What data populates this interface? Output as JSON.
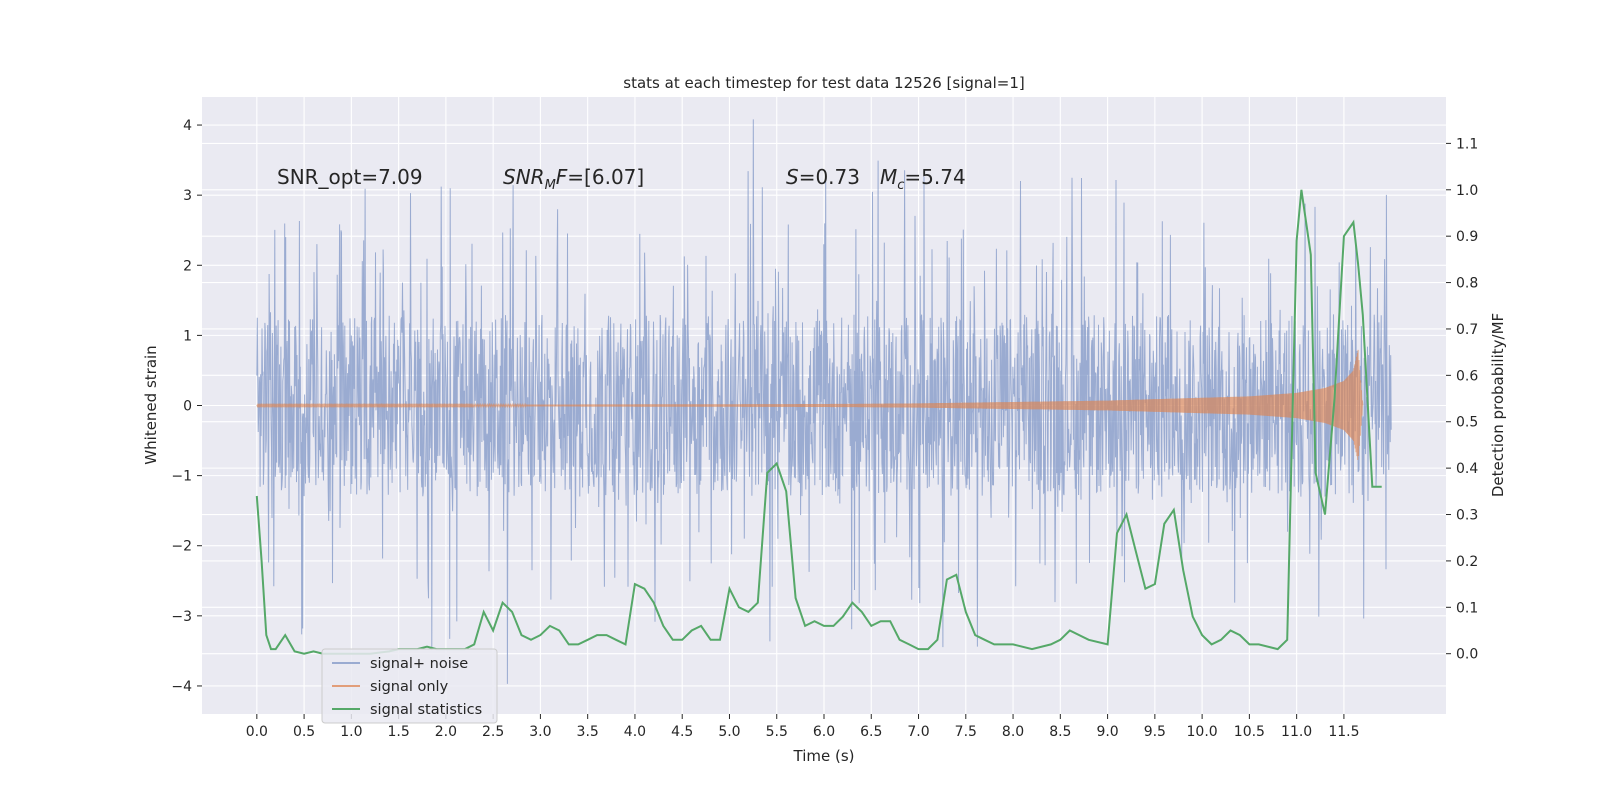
{
  "chart_data": {
    "type": "line",
    "title": "stats at each timestep for test data 12526 [signal=1]",
    "xlabel": "Time (s)",
    "ylabel": "Whitened strain",
    "y2label": "Detection probability/MF",
    "xlim": [
      -0.58,
      12.58
    ],
    "ylim": [
      -4.4,
      4.4
    ],
    "y2lim": [
      -0.13,
      1.2
    ],
    "x_ticks": [
      0.0,
      0.5,
      1.0,
      1.5,
      2.0,
      2.5,
      3.0,
      3.5,
      4.0,
      4.5,
      5.0,
      5.5,
      6.0,
      6.5,
      7.0,
      7.5,
      8.0,
      8.5,
      9.0,
      9.5,
      10.0,
      10.5,
      11.0,
      11.5
    ],
    "x_tick_labels": [
      "0.0",
      "0.5",
      "1.0",
      "1.5",
      "2.0",
      "2.5",
      "3.0",
      "3.5",
      "4.0",
      "4.5",
      "5.0",
      "5.5",
      "6.0",
      "6.5",
      "7.0",
      "7.5",
      "8.0",
      "8.5",
      "9.0",
      "9.5",
      "10.0",
      "10.5",
      "11.0",
      "11.5"
    ],
    "y_ticks": [
      -4,
      -3,
      -2,
      -1,
      0,
      1,
      2,
      3,
      4
    ],
    "y_tick_labels": [
      "−4",
      "−3",
      "−2",
      "−1",
      "0",
      "1",
      "2",
      "3",
      "4"
    ],
    "y2_ticks": [
      0.0,
      0.1,
      0.2,
      0.3,
      0.4,
      0.5,
      0.6,
      0.7,
      0.8,
      0.9,
      1.0,
      1.1
    ],
    "y2_tick_labels": [
      "0.0",
      "0.1",
      "0.2",
      "0.3",
      "0.4",
      "0.5",
      "0.6",
      "0.7",
      "0.8",
      "0.9",
      "1.0",
      "1.1"
    ],
    "grid": true,
    "legend_position": "bottom-left",
    "annotations": {
      "snr_opt": "SNR_opt=7.09",
      "snr_mf_main": "SNR",
      "snr_mf_sub": "M",
      "snr_mf_rest": "F",
      "snr_mf_value": "=[6.07]",
      "s_symbol": "S",
      "s_value": "=0.73",
      "mc_symbol": "M",
      "mc_sub": "c",
      "mc_value": "=5.74"
    },
    "series": [
      {
        "name": "signal+ noise",
        "color": "#7f96c6",
        "x_range": [
          0.0,
          12.0
        ],
        "core_amplitude": 1.3,
        "peak_max": 4.08,
        "peak_min": -3.97
      },
      {
        "name": "signal only",
        "color": "#dd8452",
        "x_range": [
          0.0,
          11.7
        ],
        "chirp_envelope": [
          [
            0.0,
            0.01
          ],
          [
            2.0,
            0.01
          ],
          [
            4.0,
            0.015
          ],
          [
            6.0,
            0.02
          ],
          [
            7.0,
            0.03
          ],
          [
            8.0,
            0.05
          ],
          [
            9.0,
            0.07
          ],
          [
            10.0,
            0.11
          ],
          [
            10.5,
            0.13
          ],
          [
            11.0,
            0.18
          ],
          [
            11.3,
            0.25
          ],
          [
            11.5,
            0.35
          ],
          [
            11.6,
            0.5
          ],
          [
            11.65,
            0.8
          ],
          [
            11.7,
            0.0
          ]
        ]
      },
      {
        "name": "signal statistics",
        "color": "#55a868",
        "axis": "right",
        "x": [
          0.0,
          0.05,
          0.1,
          0.15,
          0.2,
          0.3,
          0.4,
          0.5,
          0.6,
          0.7,
          0.8,
          1.0,
          1.2,
          1.4,
          1.5,
          1.6,
          1.7,
          1.8,
          1.9,
          2.0,
          2.1,
          2.2,
          2.3,
          2.4,
          2.5,
          2.6,
          2.7,
          2.8,
          2.9,
          3.0,
          3.1,
          3.2,
          3.3,
          3.4,
          3.5,
          3.6,
          3.7,
          3.8,
          3.9,
          4.0,
          4.1,
          4.2,
          4.3,
          4.4,
          4.5,
          4.6,
          4.7,
          4.8,
          4.9,
          5.0,
          5.1,
          5.2,
          5.3,
          5.4,
          5.5,
          5.6,
          5.7,
          5.8,
          5.9,
          6.0,
          6.1,
          6.2,
          6.3,
          6.4,
          6.5,
          6.6,
          6.7,
          6.8,
          6.9,
          7.0,
          7.1,
          7.2,
          7.3,
          7.4,
          7.5,
          7.6,
          7.7,
          7.8,
          7.9,
          8.0,
          8.2,
          8.4,
          8.5,
          8.6,
          8.8,
          9.0,
          9.1,
          9.2,
          9.3,
          9.4,
          9.5,
          9.6,
          9.7,
          9.8,
          9.9,
          10.0,
          10.1,
          10.2,
          10.3,
          10.4,
          10.5,
          10.6,
          10.8,
          10.9,
          11.0,
          11.05,
          11.1,
          11.15,
          11.2,
          11.3,
          11.4,
          11.5,
          11.6,
          11.65,
          11.7,
          11.8,
          11.9
        ],
        "values": [
          0.34,
          0.2,
          0.04,
          0.01,
          0.01,
          0.04,
          0.005,
          0.0,
          0.005,
          0.0,
          0.0,
          0.0,
          0.0,
          0.005,
          0.01,
          0.01,
          0.01,
          0.015,
          0.01,
          0.01,
          0.01,
          0.01,
          0.02,
          0.09,
          0.05,
          0.11,
          0.09,
          0.04,
          0.03,
          0.04,
          0.06,
          0.05,
          0.02,
          0.02,
          0.03,
          0.04,
          0.04,
          0.03,
          0.02,
          0.15,
          0.14,
          0.11,
          0.06,
          0.03,
          0.03,
          0.05,
          0.06,
          0.03,
          0.03,
          0.14,
          0.1,
          0.09,
          0.11,
          0.39,
          0.41,
          0.35,
          0.12,
          0.06,
          0.07,
          0.06,
          0.06,
          0.08,
          0.11,
          0.09,
          0.06,
          0.07,
          0.07,
          0.03,
          0.02,
          0.01,
          0.01,
          0.03,
          0.16,
          0.17,
          0.09,
          0.04,
          0.03,
          0.02,
          0.02,
          0.02,
          0.01,
          0.02,
          0.03,
          0.05,
          0.03,
          0.02,
          0.26,
          0.3,
          0.22,
          0.14,
          0.15,
          0.28,
          0.31,
          0.18,
          0.08,
          0.04,
          0.02,
          0.03,
          0.05,
          0.04,
          0.02,
          0.02,
          0.01,
          0.03,
          0.89,
          1.0,
          0.93,
          0.86,
          0.39,
          0.3,
          0.55,
          0.9,
          0.93,
          0.84,
          0.73,
          0.36,
          0.36
        ]
      }
    ]
  }
}
